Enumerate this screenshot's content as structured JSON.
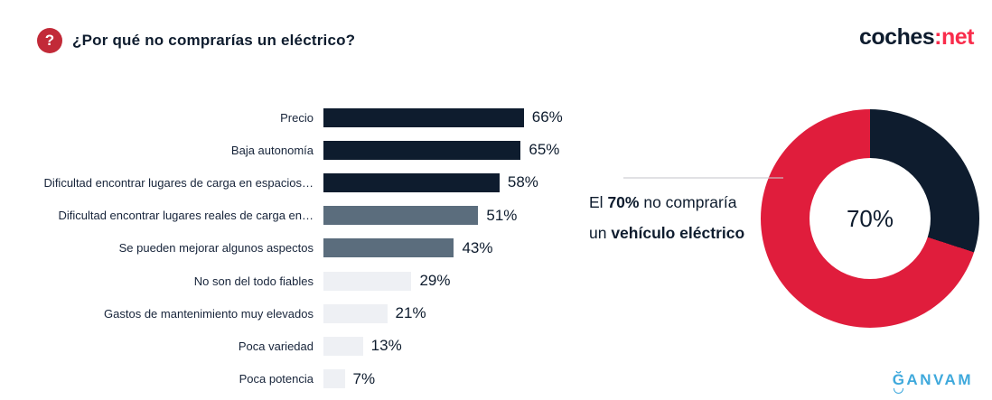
{
  "header": {
    "title": "¿Por qué no comprarías un eléctrico?",
    "help_icon_glyph": "?",
    "logo": {
      "part_dark": "coches",
      "separator": ":",
      "part_red": "net"
    },
    "colors": {
      "help_icon_bg": "#C22A38",
      "logo_dark": "#0E1C2E",
      "logo_red": "#F92C4B"
    }
  },
  "chart_data": [
    {
      "type": "bar",
      "orientation": "horizontal",
      "title": "¿Por qué no comprarías un eléctrico?",
      "xlabel": "",
      "ylabel": "",
      "xlim": [
        0,
        70
      ],
      "grid": false,
      "axes_visible": false,
      "value_labels_position": "end-of-bar",
      "categories": [
        "Precio",
        "Baja autonomía",
        "Dificultad encontrar lugares de carga en espacios…",
        "Dificultad encontrar lugares reales de carga en…",
        "Se pueden mejorar algunos aspectos",
        "No son del todo fiables",
        "Gastos de mantenimiento muy elevados",
        "Poca variedad",
        "Poca potencia"
      ],
      "values": [
        66,
        65,
        58,
        51,
        43,
        29,
        21,
        13,
        7
      ],
      "value_labels": [
        "66%",
        "65%",
        "58%",
        "51%",
        "43%",
        "29%",
        "21%",
        "13%",
        "7%"
      ],
      "bar_colors": [
        "#0E1C2E",
        "#0E1C2E",
        "#0E1C2E",
        "#5B6D7D",
        "#5B6D7D",
        "#EEF0F4",
        "#EEF0F4",
        "#EEF0F4",
        "#EEF0F4"
      ]
    },
    {
      "type": "pie",
      "subtype": "donut",
      "center_label": "70%",
      "start_angle_deg": 0,
      "direction": "clockwise",
      "segments_draw_order": [
        {
          "value": 30,
          "color": "#0E1C2E"
        },
        {
          "value": 70,
          "color": "#E01D3C"
        }
      ],
      "highlight_value": 70,
      "highlight_color": "#E01D3C",
      "legend": "none"
    }
  ],
  "callout": {
    "line1_pre": "El ",
    "line1_bold": "70%",
    "line1_post": " no compraría",
    "line2_pre": "un ",
    "line2_bold": "vehículo eléctrico",
    "line2_post": ""
  },
  "footer": {
    "ganvam_first_letter": "Ğ",
    "ganvam_rest": "ANVAM",
    "ganvam_color": "#3FA9DC"
  }
}
